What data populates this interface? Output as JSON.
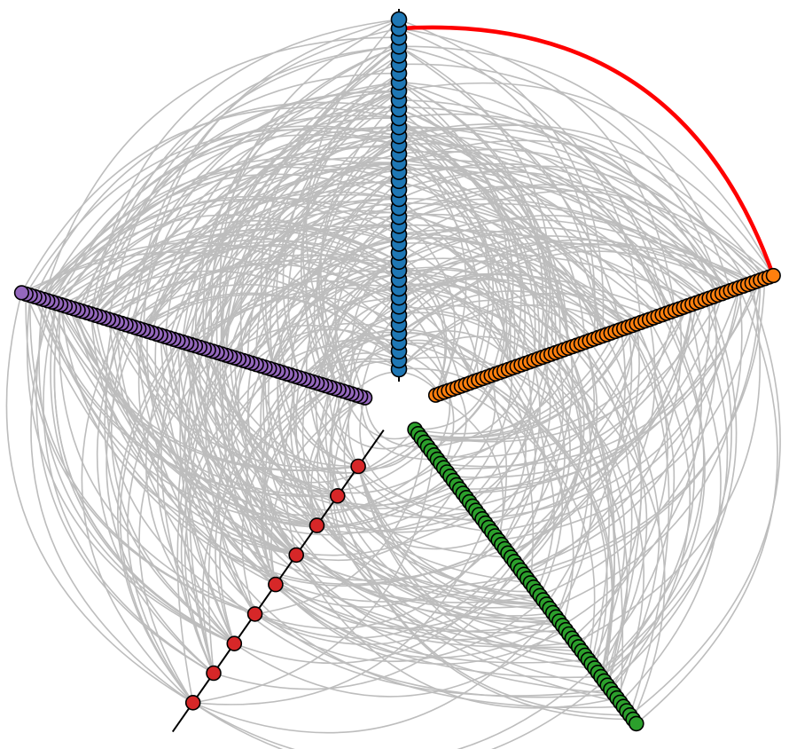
{
  "colors": {
    "background": "#ffffff",
    "edge": "#bdbdbd",
    "highlight_edge": "#ff0000",
    "axis_line": "#000000",
    "node_stroke": "#000000"
  },
  "hive": {
    "axes": [
      {
        "id": "blue",
        "color": "#1f77b4",
        "node_count": 40
      },
      {
        "id": "orange",
        "color": "#ff7f0e",
        "node_count": 80
      },
      {
        "id": "green",
        "color": "#2ca02c",
        "node_count": 70
      },
      {
        "id": "red",
        "color": "#d62728",
        "node_count": 9
      },
      {
        "id": "purple",
        "color": "#9467bd",
        "node_count": 80
      }
    ],
    "highlighted_edge": {
      "from_axis": "blue",
      "from_node": 38,
      "to_axis": "orange",
      "to_node": 79
    }
  }
}
